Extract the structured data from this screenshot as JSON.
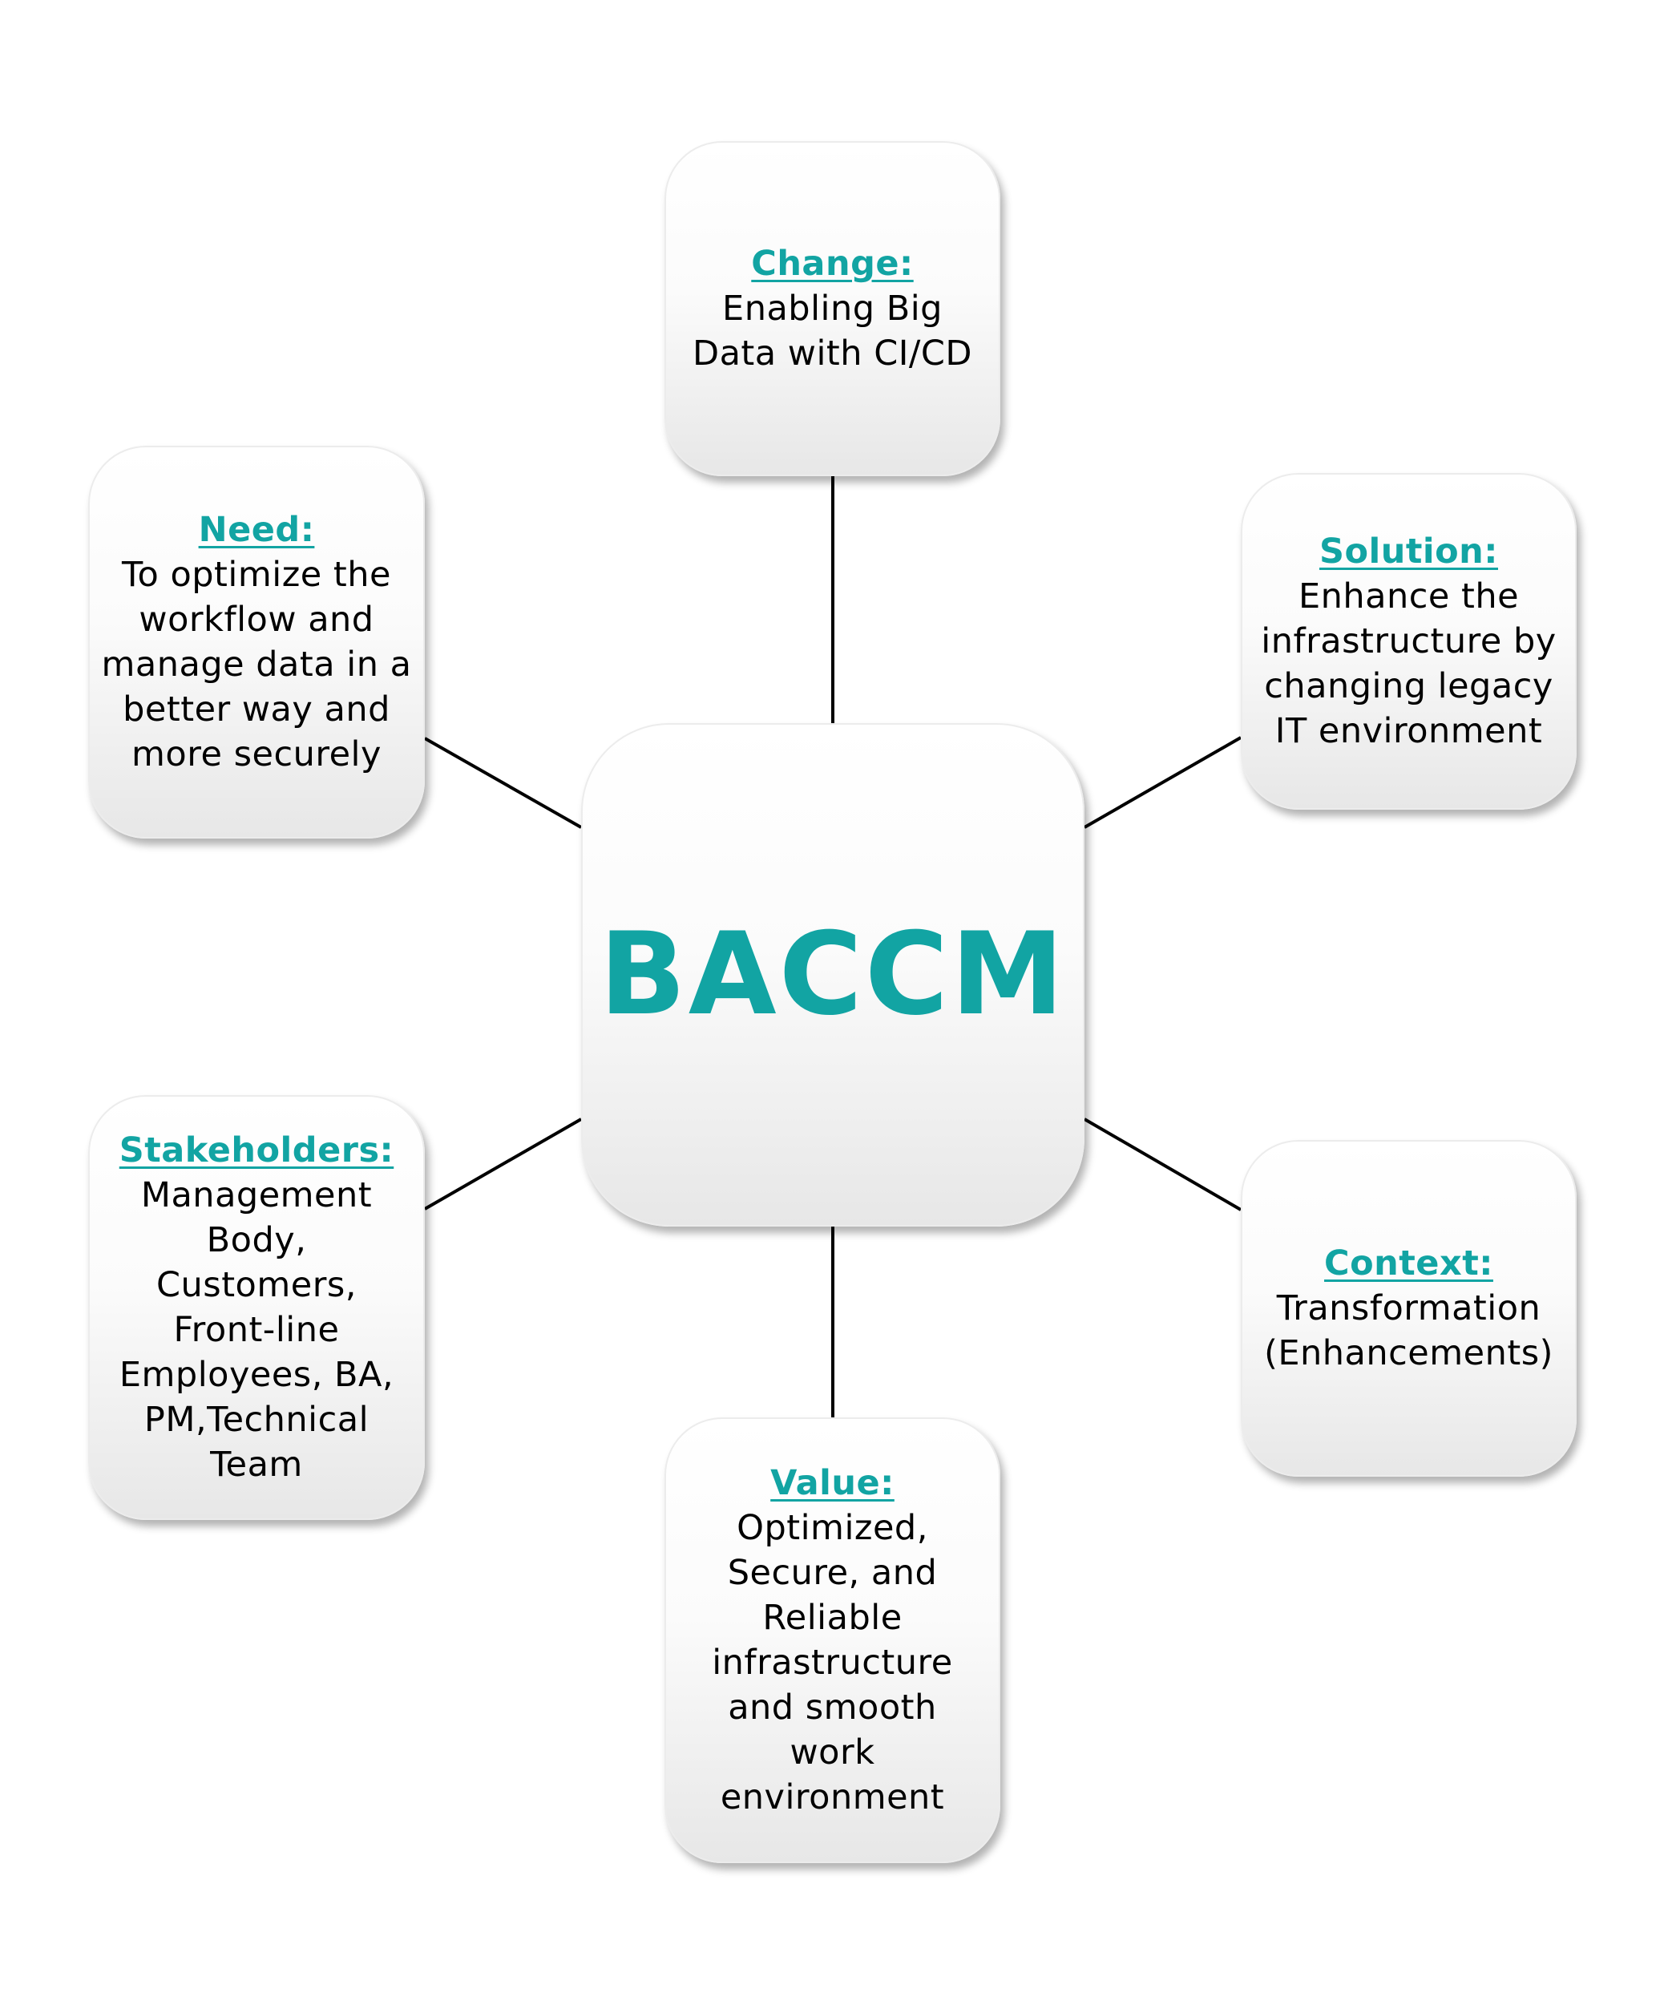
{
  "center": {
    "title": "BACCM"
  },
  "nodes": {
    "change": {
      "label": "Change:",
      "lines": [
        "Enabling Big",
        "Data with CI/CD"
      ]
    },
    "need": {
      "label": "Need:",
      "lines": [
        "To optimize the",
        "workflow and",
        "manage data in a",
        "better way and",
        "more securely"
      ]
    },
    "solution": {
      "label": "Solution:",
      "lines": [
        "Enhance the",
        "infrastructure by",
        "changing legacy",
        "IT environment"
      ]
    },
    "stakeholders": {
      "label": "Stakeholders:",
      "lines": [
        "Management",
        "Body,",
        "Customers,",
        "Front-line",
        "Employees, BA,",
        "PM,Technical",
        "Team"
      ]
    },
    "context": {
      "label": "Context:",
      "lines": [
        "Transformation",
        "(Enhancements)"
      ]
    },
    "value": {
      "label": "Value:",
      "lines": [
        "Optimized,",
        "Secure, and",
        "Reliable",
        "infrastructure",
        "and smooth",
        "work",
        "environment"
      ]
    }
  },
  "colors": {
    "accent": "#12a4a3",
    "text": "#000000",
    "connector": "#000000"
  }
}
